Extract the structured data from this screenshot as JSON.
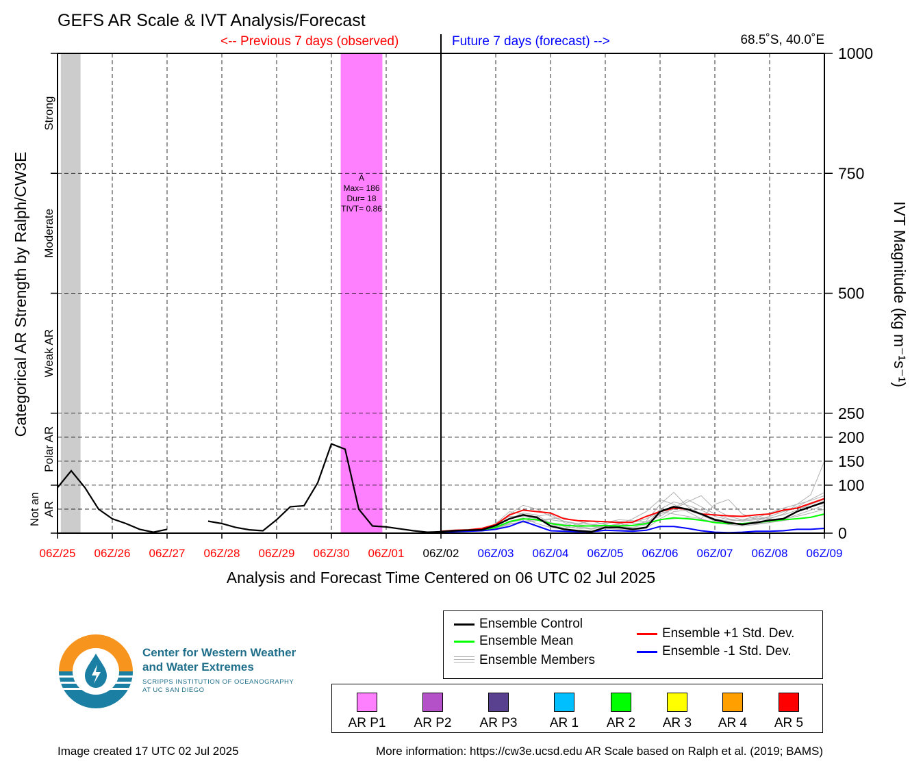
{
  "title": "GEFS AR Scale & IVT Analysis/Forecast",
  "header": {
    "previous_label": "<-- Previous 7 days (observed)",
    "future_label": "Future 7 days (forecast) -->",
    "location": "68.5˚S, 40.0˚E",
    "previous_color": "#ff0000",
    "future_color": "#0000ff"
  },
  "chart_data": {
    "type": "line",
    "title": "GEFS AR Scale & IVT Analysis/Forecast",
    "xlabel": "Analysis and Forecast Time Centered on 06 UTC 02 Jul 2025",
    "ylabel_left": "Categorical AR Strength by Ralph/CW3E",
    "ylabel_right": "IVT Magnitude (kg m⁻¹s⁻¹)",
    "x_ticks": [
      "06Z/25",
      "06Z/26",
      "06Z/27",
      "06Z/28",
      "06Z/29",
      "06Z/30",
      "06Z/01",
      "06Z/02",
      "06Z/03",
      "06Z/04",
      "06Z/05",
      "06Z/06",
      "06Z/07",
      "06Z/08",
      "06Z/09"
    ],
    "x_tick_colors": [
      "#ff0000",
      "#ff0000",
      "#ff0000",
      "#ff0000",
      "#ff0000",
      "#ff0000",
      "#ff0000",
      "#000000",
      "#0000ff",
      "#0000ff",
      "#0000ff",
      "#0000ff",
      "#0000ff",
      "#0000ff",
      "#0000ff"
    ],
    "xlim_days": [
      -7,
      7
    ],
    "y_ticks": [
      0,
      100,
      150,
      200,
      250,
      500,
      750,
      1000
    ],
    "ylim": [
      0,
      1000
    ],
    "y_gridlines": [
      50,
      100,
      150,
      200,
      250,
      500,
      750
    ],
    "categories": [
      {
        "label": "Not an AR",
        "lines": [
          "Not an",
          "AR"
        ],
        "from": 0,
        "to": 100
      },
      {
        "label": "Polar AR",
        "lines": [
          "Polar AR"
        ],
        "from": 100,
        "to": 250
      },
      {
        "label": "Weak AR",
        "lines": [
          "Weak AR"
        ],
        "from": 250,
        "to": 500
      },
      {
        "label": "Moderate",
        "lines": [
          "Moderate"
        ],
        "from": 500,
        "to": 750
      },
      {
        "label": "Strong",
        "lines": [
          "Strong"
        ],
        "from": 750,
        "to": 1000
      }
    ],
    "shaded_periods": [
      {
        "x0": -6.94,
        "x1": -6.58,
        "color": "#cccccc"
      },
      {
        "x0": -1.83,
        "x1": -1.07,
        "color": "#ff80ff",
        "annotation": [
          "A",
          "Max= 186",
          "Dur= 18",
          "TIVT= 0.86"
        ]
      }
    ],
    "observed": {
      "name": "Ensemble Control",
      "color": "#000000",
      "segments": [
        [
          [
            -7.0,
            95
          ],
          [
            -6.75,
            130
          ],
          [
            -6.5,
            95
          ],
          [
            -6.25,
            50
          ],
          [
            -6.0,
            30
          ],
          [
            -5.75,
            20
          ],
          [
            -5.5,
            8
          ],
          [
            -5.25,
            2
          ],
          [
            -5.0,
            8
          ]
        ],
        [
          [
            -4.25,
            25
          ],
          [
            -4.0,
            20
          ],
          [
            -3.75,
            12
          ],
          [
            -3.5,
            7
          ],
          [
            -3.25,
            5
          ],
          [
            -3.0,
            28
          ],
          [
            -2.75,
            55
          ],
          [
            -2.5,
            57
          ],
          [
            -2.25,
            105
          ],
          [
            -2.0,
            186
          ],
          [
            -1.75,
            175
          ],
          [
            -1.5,
            50
          ],
          [
            -1.25,
            15
          ],
          [
            -1.0,
            13
          ],
          [
            -0.75,
            9
          ],
          [
            -0.5,
            5
          ],
          [
            -0.25,
            2
          ],
          [
            0.0,
            3
          ]
        ]
      ]
    },
    "series": [
      {
        "name": "Ensemble Control",
        "color": "#000000",
        "x": [
          0,
          0.25,
          0.5,
          0.75,
          1.0,
          1.25,
          1.5,
          1.75,
          2.0,
          2.25,
          2.5,
          2.75,
          3.0,
          3.25,
          3.5,
          3.75,
          4.0,
          4.25,
          4.5,
          4.75,
          5.0,
          5.25,
          5.5,
          5.75,
          6.0,
          6.25,
          6.5,
          6.75,
          7.0
        ],
        "values": [
          3,
          5,
          6,
          7,
          16,
          30,
          38,
          33,
          15,
          8,
          5,
          3,
          12,
          12,
          8,
          12,
          45,
          55,
          50,
          40,
          28,
          22,
          18,
          22,
          27,
          30,
          45,
          55,
          65
        ]
      },
      {
        "name": "Ensemble Mean",
        "color": "#00ff00",
        "x": [
          0,
          0.25,
          0.5,
          0.75,
          1.0,
          1.25,
          1.5,
          1.75,
          2.0,
          2.25,
          2.5,
          2.75,
          3.0,
          3.25,
          3.5,
          3.75,
          4.0,
          4.25,
          4.5,
          4.75,
          5.0,
          5.25,
          5.5,
          5.75,
          6.0,
          6.25,
          6.5,
          6.75,
          7.0
        ],
        "values": [
          3,
          5,
          6,
          7,
          12,
          24,
          30,
          28,
          20,
          16,
          15,
          15,
          16,
          15,
          16,
          20,
          28,
          32,
          30,
          27,
          22,
          20,
          20,
          22,
          25,
          28,
          30,
          33,
          40
        ]
      },
      {
        "name": "Ensemble +1 Std. Dev.",
        "color": "#ff0000",
        "x": [
          0,
          0.25,
          0.5,
          0.75,
          1.0,
          1.25,
          1.5,
          1.75,
          2.0,
          2.25,
          2.5,
          2.75,
          3.0,
          3.25,
          3.5,
          3.75,
          4.0,
          4.25,
          4.5,
          4.75,
          5.0,
          5.25,
          5.5,
          5.75,
          6.0,
          6.25,
          6.5,
          6.75,
          7.0
        ],
        "values": [
          4,
          6,
          7,
          10,
          18,
          38,
          48,
          45,
          42,
          30,
          26,
          25,
          24,
          22,
          23,
          35,
          45,
          52,
          50,
          40,
          38,
          36,
          35,
          38,
          40,
          48,
          52,
          62,
          72
        ]
      },
      {
        "name": "Ensemble -1 Std. Dev.",
        "color": "#0000ff",
        "x": [
          0,
          0.25,
          0.5,
          0.75,
          1.0,
          1.25,
          1.5,
          1.75,
          2.0,
          2.25,
          2.5,
          2.75,
          3.0,
          3.25,
          3.5,
          3.75,
          4.0,
          4.25,
          4.5,
          4.75,
          5.0,
          5.25,
          5.5,
          5.75,
          6.0,
          6.25,
          6.5,
          6.75,
          7.0
        ],
        "values": [
          2,
          3,
          4,
          5,
          8,
          14,
          25,
          15,
          5,
          4,
          3,
          3,
          6,
          5,
          4,
          6,
          14,
          14,
          10,
          5,
          2,
          1,
          2,
          4,
          4,
          5,
          8,
          8,
          10
        ]
      }
    ],
    "members": {
      "name": "Ensemble Members",
      "color": "#b0b0b0",
      "x": [
        0,
        0.25,
        0.5,
        0.75,
        1.0,
        1.25,
        1.5,
        1.75,
        2.0,
        2.25,
        2.5,
        2.75,
        3.0,
        3.25,
        3.5,
        3.75,
        4.0,
        4.25,
        4.5,
        4.75,
        5.0,
        5.25,
        5.5,
        5.75,
        6.0,
        6.25,
        6.5,
        6.75,
        7.0
      ],
      "lines": [
        [
          3,
          5,
          6,
          8,
          20,
          45,
          40,
          30,
          22,
          18,
          14,
          10,
          14,
          20,
          15,
          25,
          60,
          85,
          55,
          40,
          30,
          25,
          28,
          35,
          30,
          40,
          60,
          80,
          150
        ],
        [
          3,
          4,
          6,
          7,
          10,
          22,
          28,
          35,
          40,
          22,
          12,
          8,
          15,
          18,
          30,
          45,
          70,
          60,
          45,
          30,
          22,
          18,
          20,
          25,
          35,
          45,
          55,
          70,
          85
        ],
        [
          3,
          5,
          7,
          6,
          14,
          30,
          42,
          38,
          20,
          10,
          20,
          25,
          18,
          10,
          12,
          18,
          40,
          50,
          65,
          78,
          50,
          35,
          28,
          30,
          32,
          38,
          48,
          60,
          70
        ],
        [
          3,
          5,
          5,
          7,
          9,
          18,
          25,
          28,
          30,
          32,
          25,
          18,
          20,
          25,
          22,
          30,
          45,
          40,
          35,
          30,
          60,
          70,
          40,
          30,
          28,
          30,
          35,
          42,
          50
        ],
        [
          3,
          6,
          6,
          8,
          16,
          40,
          58,
          50,
          35,
          25,
          20,
          18,
          10,
          8,
          6,
          10,
          30,
          45,
          48,
          38,
          25,
          18,
          15,
          18,
          22,
          28,
          38,
          48,
          58
        ],
        [
          3,
          4,
          6,
          7,
          12,
          25,
          32,
          20,
          12,
          10,
          14,
          16,
          22,
          28,
          26,
          24,
          35,
          52,
          70,
          55,
          40,
          30,
          25,
          28,
          35,
          45,
          52,
          55,
          62
        ],
        [
          3,
          5,
          6,
          7,
          10,
          20,
          22,
          26,
          28,
          24,
          18,
          14,
          12,
          16,
          20,
          22,
          28,
          30,
          32,
          28,
          24,
          20,
          18,
          20,
          22,
          26,
          30,
          34,
          38
        ],
        [
          3,
          5,
          6,
          9,
          18,
          35,
          35,
          30,
          22,
          14,
          10,
          10,
          16,
          14,
          12,
          18,
          50,
          65,
          58,
          48,
          35,
          28,
          26,
          32,
          42,
          52,
          60,
          68,
          78
        ]
      ]
    },
    "legend": {
      "left": [
        "Ensemble Control",
        "Ensemble Mean",
        "Ensemble Members"
      ],
      "right": [
        "Ensemble +1 Std. Dev.",
        "Ensemble -1 Std. Dev."
      ]
    }
  },
  "ar_scale_legend": [
    {
      "label": "AR P1",
      "color": "#ff80ff"
    },
    {
      "label": "AR P2",
      "color": "#b450c8"
    },
    {
      "label": "AR P3",
      "color": "#5a4190"
    },
    {
      "label": "AR 1",
      "color": "#00bfff"
    },
    {
      "label": "AR 2",
      "color": "#00ff00"
    },
    {
      "label": "AR 3",
      "color": "#ffff00"
    },
    {
      "label": "AR 4",
      "color": "#ffa000"
    },
    {
      "label": "AR 5",
      "color": "#ff0000"
    }
  ],
  "logo": {
    "line1": "Center for Western Weather",
    "line2": "and Water Extremes",
    "line3": "SCRIPPS INSTITUTION OF OCEANOGRAPHY",
    "line4": "AT UC SAN DIEGO"
  },
  "footer": {
    "created": "Image created 17 UTC 02 Jul 2025",
    "more_info": "More information: https://cw3e.ucsd.edu AR Scale based on Ralph et al. (2019; BAMS)"
  }
}
